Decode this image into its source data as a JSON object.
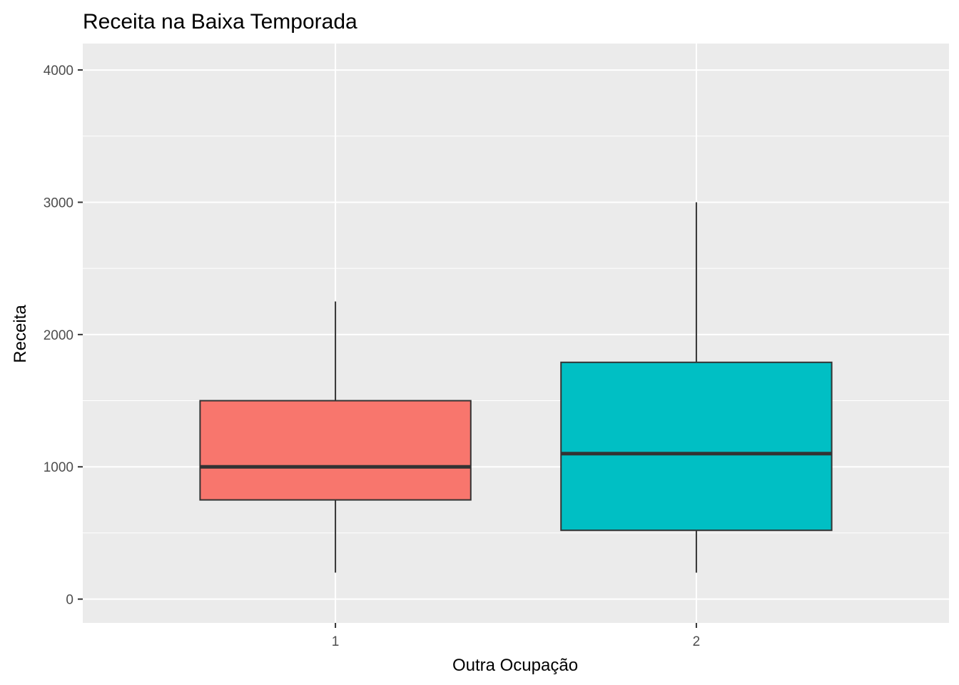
{
  "chart_data": {
    "type": "boxplot",
    "title": "Receita na Baixa Temporada",
    "xlabel": "Outra Ocupação",
    "ylabel": "Receita",
    "ylim": [
      -180,
      4200
    ],
    "y_ticks": [
      0,
      1000,
      2000,
      3000,
      4000
    ],
    "y_tick_labels": [
      "0",
      "1000",
      "2000",
      "3000",
      "4000"
    ],
    "categories": [
      "1",
      "2"
    ],
    "boxes": [
      {
        "category": "1",
        "min": 200,
        "q1": 750,
        "median": 1000,
        "q3": 1500,
        "max": 2250,
        "color": "#F8766D"
      },
      {
        "category": "2",
        "min": 200,
        "q1": 520,
        "median": 1100,
        "q3": 1790,
        "max": 3000,
        "color": "#00BFC4"
      }
    ],
    "grid": true,
    "legend": "none",
    "colors": {
      "panel_background": "#EBEBEB",
      "grid": "#FFFFFF",
      "box_outline": "#333333"
    }
  }
}
